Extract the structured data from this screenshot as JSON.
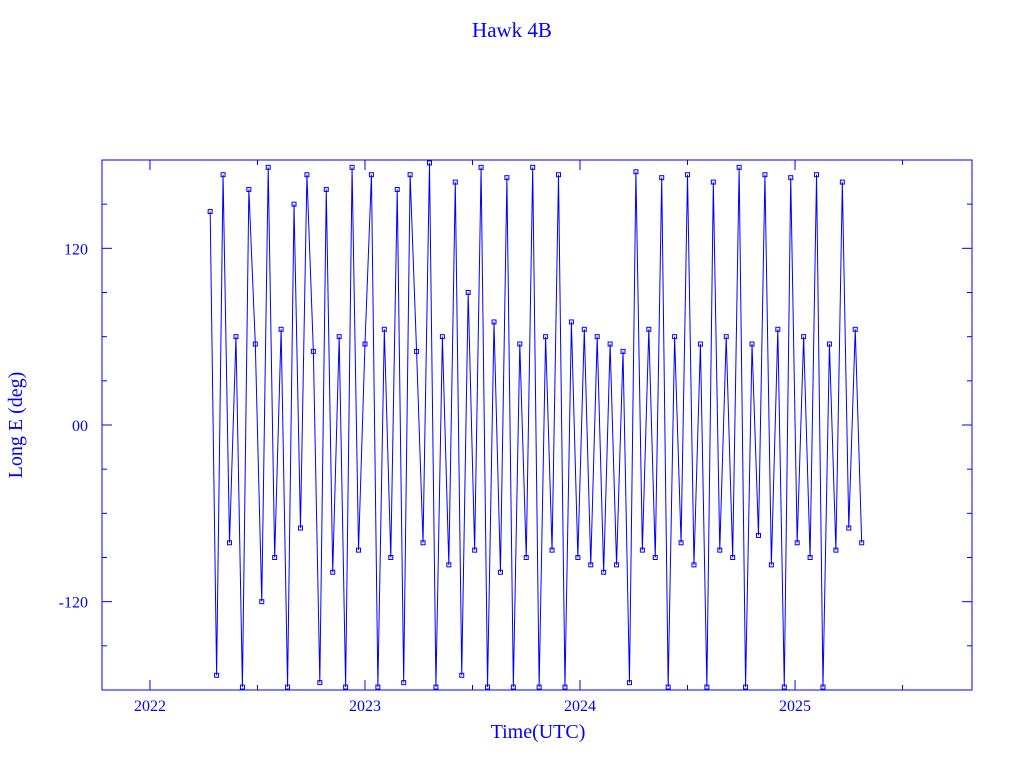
{
  "chart_data": {
    "type": "line",
    "title": "Hawk 4B",
    "x_label": "Time(UTC)",
    "y_label": "Long E (deg)",
    "color": "#0000ff",
    "xlim": [
      2021.777,
      2025.823
    ],
    "xticks": [
      2022,
      2023,
      2024,
      2025
    ],
    "ylim": [
      -180,
      180
    ],
    "yticks": [
      {
        "value": -120,
        "label": "-120"
      },
      {
        "value": 0,
        "label": "00"
      },
      {
        "value": 120,
        "label": "120"
      }
    ],
    "x": [
      2022.28,
      2022.31,
      2022.34,
      2022.37,
      2022.4,
      2022.43,
      2022.46,
      2022.49,
      2022.52,
      2022.55,
      2022.58,
      2022.61,
      2022.64,
      2022.67,
      2022.7,
      2022.73,
      2022.76,
      2022.79,
      2022.82,
      2022.85,
      2022.88,
      2022.91,
      2022.94,
      2022.97,
      2023.0,
      2023.03,
      2023.06,
      2023.09,
      2023.12,
      2023.15,
      2023.18,
      2023.21,
      2023.24,
      2023.27,
      2023.3,
      2023.33,
      2023.36,
      2023.39,
      2023.42,
      2023.45,
      2023.48,
      2023.51,
      2023.54,
      2023.57,
      2023.6,
      2023.63,
      2023.66,
      2023.69,
      2023.72,
      2023.75,
      2023.78,
      2023.81,
      2023.84,
      2023.87,
      2023.9,
      2023.93,
      2023.96,
      2023.99,
      2024.02,
      2024.05,
      2024.08,
      2024.11,
      2024.14,
      2024.17,
      2024.2,
      2024.23,
      2024.26,
      2024.29,
      2024.32,
      2024.35,
      2024.38,
      2024.41,
      2024.44,
      2024.47,
      2024.5,
      2024.53,
      2024.56,
      2024.59,
      2024.62,
      2024.65,
      2024.68,
      2024.71,
      2024.74,
      2024.77,
      2024.8,
      2024.83,
      2024.86,
      2024.89,
      2024.92,
      2024.95,
      2024.98,
      2025.01,
      2025.04,
      2025.07,
      2025.1,
      2025.13,
      2025.16,
      2025.19,
      2025.22,
      2025.25,
      2025.28,
      2025.31
    ],
    "values": [
      145,
      -170,
      170,
      -80,
      60,
      -178,
      160,
      55,
      -120,
      175,
      -90,
      65,
      -178,
      150,
      -70,
      170,
      50,
      -175,
      160,
      -100,
      60,
      -178,
      175,
      -85,
      55,
      170,
      -178,
      65,
      -90,
      160,
      -175,
      170,
      50,
      -80,
      178,
      -178,
      60,
      -95,
      165,
      -170,
      90,
      -85,
      175,
      -178,
      70,
      -100,
      168,
      -178,
      55,
      -90,
      175,
      -178,
      60,
      -85,
      170,
      -178,
      70,
      -90,
      65,
      -95,
      60,
      -100,
      55,
      -95,
      50,
      -175,
      172,
      -85,
      65,
      -90,
      168,
      -178,
      60,
      -80,
      170,
      -95,
      55,
      -178,
      165,
      -85,
      60,
      -90,
      175,
      -178,
      55,
      -75,
      170,
      -95,
      65,
      -178,
      168,
      -80,
      60,
      -90,
      170,
      -178,
      55,
      -85,
      165,
      -70,
      65,
      -80
    ]
  }
}
